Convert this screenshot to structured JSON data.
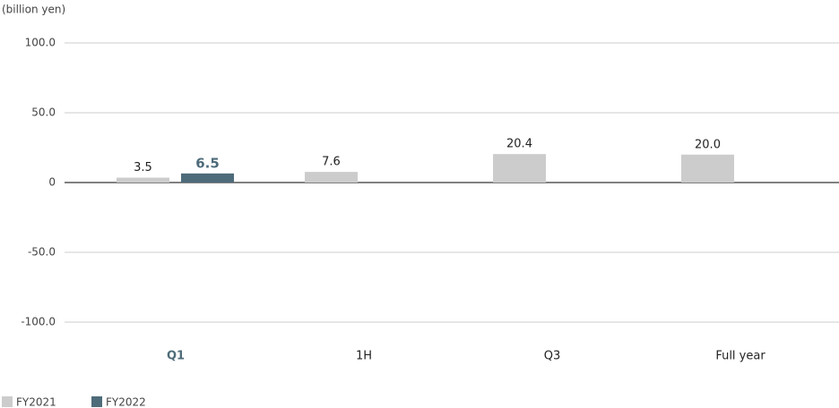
{
  "chart_data": {
    "type": "bar",
    "unit_label": "(billion yen)",
    "categories": [
      "Q1",
      "1H",
      "Q3",
      "Full year"
    ],
    "series": [
      {
        "name": "FY2021",
        "color": "#cccccc",
        "values": [
          3.5,
          7.6,
          20.4,
          20.0
        ],
        "value_labels": [
          "3.5",
          "7.6",
          "20.4",
          "20.0"
        ]
      },
      {
        "name": "FY2022",
        "color": "#4e6b7a",
        "values": [
          6.5,
          null,
          null,
          null
        ]
      }
    ],
    "ylim": [
      -100,
      100
    ],
    "yticks": [
      {
        "value": -100,
        "label": "-100.0"
      },
      {
        "value": -50,
        "label": "-50.0"
      },
      0,
      {
        "value": 50,
        "label": "50.0"
      },
      {
        "value": 100,
        "label": "100.0"
      }
    ],
    "grid": true,
    "legend": "bottom-left"
  }
}
